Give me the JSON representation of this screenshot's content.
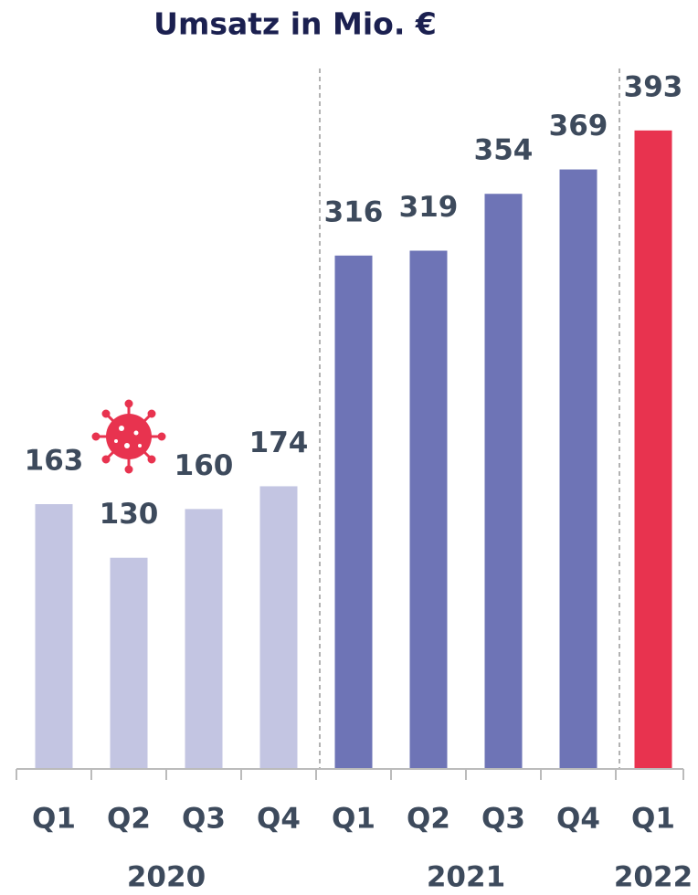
{
  "chart_data": {
    "type": "bar",
    "title": "Umsatz in Mio. €",
    "groups": [
      {
        "label": "2020",
        "color": "#c3c5e2",
        "categories": [
          "Q1",
          "Q2",
          "Q3",
          "Q4"
        ],
        "values": [
          163,
          130,
          160,
          174
        ]
      },
      {
        "label": "2021",
        "color": "#6e74b6",
        "categories": [
          "Q1",
          "Q2",
          "Q3",
          "Q4"
        ],
        "values": [
          316,
          319,
          354,
          369
        ]
      },
      {
        "label": "2022",
        "color": "#e8334f",
        "categories": [
          "Q1"
        ],
        "values": [
          393
        ]
      }
    ]
  }
}
